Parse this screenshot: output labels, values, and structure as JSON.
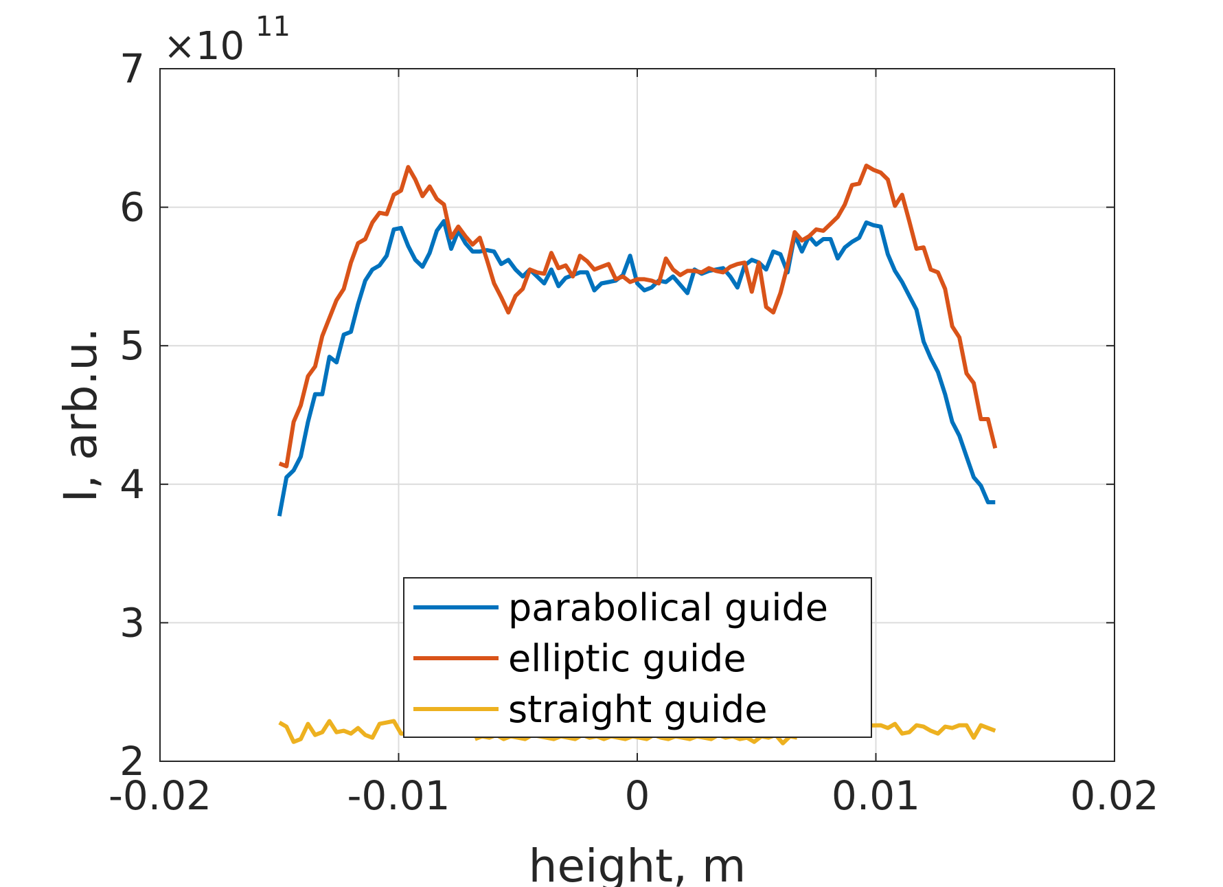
{
  "chart_data": {
    "type": "line",
    "title": "",
    "xlabel": "height, m",
    "ylabel": "I, arb.u.",
    "xlim": [
      -0.02,
      0.02
    ],
    "ylim": [
      2,
      7
    ],
    "y_exponent_base": "×10",
    "y_exponent_power": "11",
    "x_ticks": [
      -0.02,
      -0.01,
      0,
      0.01,
      0.02
    ],
    "x_tick_labels": [
      "-0.02",
      "-0.01",
      "0",
      "0.01",
      "0.02"
    ],
    "y_ticks": [
      2,
      3,
      4,
      5,
      6,
      7
    ],
    "y_tick_labels": [
      "2",
      "3",
      "4",
      "5",
      "6",
      "7"
    ],
    "grid": true,
    "legend_position": "bottom-center",
    "series": [
      {
        "name": "parabolical guide",
        "color": "#0072BD",
        "x": [
          -0.015,
          -0.0147,
          -0.0144,
          -0.0141,
          -0.0138,
          -0.0135,
          -0.0132,
          -0.0129,
          -0.0126,
          -0.0123,
          -0.012,
          -0.0117,
          -0.0114,
          -0.0111,
          -0.0108,
          -0.0105,
          -0.0102,
          -0.0099,
          -0.0096,
          -0.0093,
          -0.009,
          -0.0087,
          -0.0084,
          -0.0081,
          -0.0078,
          -0.0075,
          -0.0072,
          -0.0069,
          -0.0066,
          -0.0063,
          -0.006,
          -0.0057,
          -0.0054,
          -0.0051,
          -0.0048,
          -0.0045,
          -0.0042,
          -0.0039,
          -0.0036,
          -0.0033,
          -0.003,
          -0.0027,
          -0.0024,
          -0.0021,
          -0.0018,
          -0.0015,
          -0.0012,
          -0.0009,
          -0.0006,
          -0.0003,
          0,
          0.0003,
          0.0006,
          0.0009,
          0.0012,
          0.0015,
          0.0018,
          0.0021,
          0.0024,
          0.0027,
          0.003,
          0.0033,
          0.0036,
          0.0039,
          0.0042,
          0.0045,
          0.0048,
          0.0051,
          0.0054,
          0.0057,
          0.006,
          0.0063,
          0.0066,
          0.0069,
          0.0072,
          0.0075,
          0.0078,
          0.0081,
          0.0084,
          0.0087,
          0.009,
          0.0093,
          0.0096,
          0.0099,
          0.0102,
          0.0105,
          0.0108,
          0.0111,
          0.0114,
          0.0117,
          0.012,
          0.0123,
          0.0126,
          0.0129,
          0.0132,
          0.0135,
          0.0138,
          0.0141,
          0.0144,
          0.0147,
          0.015
        ],
        "y": [
          3.77,
          4.05,
          4.1,
          4.2,
          4.45,
          4.65,
          4.65,
          4.92,
          4.88,
          5.08,
          5.1,
          5.3,
          5.47,
          5.55,
          5.58,
          5.65,
          5.84,
          5.85,
          5.72,
          5.62,
          5.57,
          5.67,
          5.83,
          5.9,
          5.7,
          5.83,
          5.74,
          5.68,
          5.68,
          5.69,
          5.68,
          5.59,
          5.62,
          5.55,
          5.5,
          5.55,
          5.5,
          5.45,
          5.55,
          5.43,
          5.49,
          5.51,
          5.53,
          5.53,
          5.4,
          5.45,
          5.46,
          5.47,
          5.51,
          5.65,
          5.45,
          5.4,
          5.42,
          5.47,
          5.46,
          5.5,
          5.44,
          5.38,
          5.55,
          5.52,
          5.54,
          5.55,
          5.56,
          5.5,
          5.42,
          5.58,
          5.62,
          5.6,
          5.55,
          5.68,
          5.66,
          5.53,
          5.8,
          5.68,
          5.79,
          5.73,
          5.77,
          5.77,
          5.63,
          5.71,
          5.75,
          5.78,
          5.89,
          5.87,
          5.86,
          5.66,
          5.54,
          5.46,
          5.36,
          5.26,
          5.03,
          4.91,
          4.81,
          4.65,
          4.45,
          4.35,
          4.2,
          4.05,
          3.99,
          3.87,
          3.87
        ]
      },
      {
        "name": "elliptic guide",
        "color": "#D95319",
        "x": [
          -0.015,
          -0.0147,
          -0.0144,
          -0.0141,
          -0.0138,
          -0.0135,
          -0.0132,
          -0.0129,
          -0.0126,
          -0.0123,
          -0.012,
          -0.0117,
          -0.0114,
          -0.0111,
          -0.0108,
          -0.0105,
          -0.0102,
          -0.0099,
          -0.0096,
          -0.0093,
          -0.009,
          -0.0087,
          -0.0084,
          -0.0081,
          -0.0078,
          -0.0075,
          -0.0072,
          -0.0069,
          -0.0066,
          -0.0063,
          -0.006,
          -0.0057,
          -0.0054,
          -0.0051,
          -0.0048,
          -0.0045,
          -0.0042,
          -0.0039,
          -0.0036,
          -0.0033,
          -0.003,
          -0.0027,
          -0.0024,
          -0.0021,
          -0.0018,
          -0.0015,
          -0.0012,
          -0.0009,
          -0.0006,
          -0.0003,
          0,
          0.0003,
          0.0006,
          0.0009,
          0.0012,
          0.0015,
          0.0018,
          0.0021,
          0.0024,
          0.0027,
          0.003,
          0.0033,
          0.0036,
          0.0039,
          0.0042,
          0.0045,
          0.0048,
          0.0051,
          0.0054,
          0.0057,
          0.006,
          0.0063,
          0.0066,
          0.0069,
          0.0072,
          0.0075,
          0.0078,
          0.0081,
          0.0084,
          0.0087,
          0.009,
          0.0093,
          0.0096,
          0.0099,
          0.0102,
          0.0105,
          0.0108,
          0.0111,
          0.0114,
          0.0117,
          0.012,
          0.0123,
          0.0126,
          0.0129,
          0.0132,
          0.0135,
          0.0138,
          0.0141,
          0.0144,
          0.0147,
          0.015
        ],
        "y": [
          4.15,
          4.13,
          4.45,
          4.57,
          4.78,
          4.85,
          5.07,
          5.2,
          5.33,
          5.41,
          5.6,
          5.74,
          5.77,
          5.89,
          5.96,
          5.95,
          6.09,
          6.12,
          6.29,
          6.2,
          6.08,
          6.15,
          6.06,
          6.02,
          5.78,
          5.86,
          5.79,
          5.73,
          5.78,
          5.62,
          5.45,
          5.35,
          5.24,
          5.36,
          5.41,
          5.55,
          5.53,
          5.52,
          5.67,
          5.56,
          5.58,
          5.5,
          5.65,
          5.61,
          5.55,
          5.57,
          5.59,
          5.48,
          5.5,
          5.46,
          5.48,
          5.48,
          5.47,
          5.45,
          5.63,
          5.55,
          5.51,
          5.54,
          5.54,
          5.53,
          5.56,
          5.54,
          5.53,
          5.57,
          5.59,
          5.6,
          5.39,
          5.6,
          5.28,
          5.24,
          5.38,
          5.58,
          5.82,
          5.76,
          5.79,
          5.84,
          5.83,
          5.88,
          5.93,
          6.02,
          6.16,
          6.17,
          6.3,
          6.27,
          6.25,
          6.2,
          6.01,
          6.09,
          5.9,
          5.7,
          5.71,
          5.55,
          5.53,
          5.41,
          5.14,
          5.06,
          4.8,
          4.73,
          4.47,
          4.47,
          4.26
        ]
      },
      {
        "name": "straight guide",
        "color": "#EDB120",
        "x": [
          -0.015,
          -0.0147,
          -0.0144,
          -0.0141,
          -0.0138,
          -0.0135,
          -0.0132,
          -0.0129,
          -0.0126,
          -0.0123,
          -0.012,
          -0.0117,
          -0.0114,
          -0.0111,
          -0.0108,
          -0.0105,
          -0.0102,
          -0.0099,
          0.0102,
          0.0105,
          0.0108,
          0.0111,
          0.0114,
          0.0117,
          0.012,
          0.0123,
          0.0126,
          0.0129,
          0.0132,
          0.0135,
          0.0138,
          0.0141,
          0.0144,
          0.0147,
          0.015
        ],
        "y": [
          2.28,
          2.25,
          2.14,
          2.16,
          2.27,
          2.19,
          2.21,
          2.29,
          2.21,
          2.22,
          2.2,
          2.24,
          2.19,
          2.17,
          2.27,
          2.28,
          2.29,
          2.2,
          2.26,
          2.24,
          2.27,
          2.2,
          2.21,
          2.26,
          2.25,
          2.22,
          2.2,
          2.25,
          2.24,
          2.26,
          2.26,
          2.17,
          2.26,
          2.24,
          2.22
        ]
      },
      {
        "name": "",
        "color": "#EDB120",
        "x": [
          -0.0068,
          -0.0065,
          -0.0062,
          -0.0059,
          -0.0056,
          -0.0053,
          -0.005,
          -0.0047,
          -0.0044,
          -0.0041,
          -0.0038,
          -0.0035,
          -0.0032,
          -0.0029,
          -0.0026,
          -0.0023,
          -0.002,
          -0.0017,
          -0.0014,
          -0.0011,
          -0.0008,
          -0.0005,
          -0.0002,
          0.0001,
          0.0004,
          0.0007,
          0.001,
          0.0013,
          0.0016,
          0.0019,
          0.0022,
          0.0025,
          0.0028,
          0.0031,
          0.0034,
          0.0037,
          0.004,
          0.0043,
          0.0046,
          0.0049,
          0.0052,
          0.0055,
          0.0058,
          0.0061,
          0.0064,
          0.0067
        ],
        "y": [
          2.16,
          2.18,
          2.17,
          2.19,
          2.16,
          2.18,
          2.17,
          2.16,
          2.19,
          2.18,
          2.17,
          2.16,
          2.18,
          2.17,
          2.16,
          2.19,
          2.17,
          2.18,
          2.16,
          2.18,
          2.17,
          2.16,
          2.18,
          2.17,
          2.16,
          2.19,
          2.17,
          2.16,
          2.18,
          2.17,
          2.16,
          2.18,
          2.17,
          2.16,
          2.19,
          2.17,
          2.18,
          2.16,
          2.17,
          2.14,
          2.18,
          2.17,
          2.19,
          2.13,
          2.18,
          2.17
        ]
      }
    ]
  }
}
